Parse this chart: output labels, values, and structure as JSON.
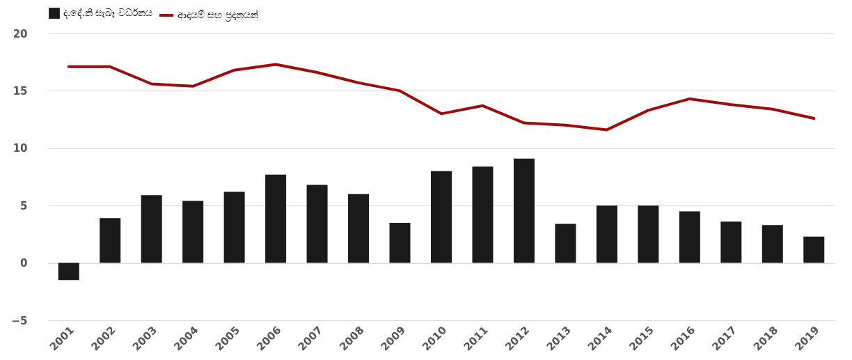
{
  "chart_data": {
    "type": "bar",
    "categories": [
      "2001",
      "2002",
      "2003",
      "2004",
      "2005",
      "2006",
      "2007",
      "2008",
      "2009",
      "2010",
      "2011",
      "2012",
      "2013",
      "2014",
      "2015",
      "2016",
      "2017",
      "2018",
      "2019"
    ],
    "series": [
      {
        "name": "ද.දේ.නි සැබෑ වර්ධනය",
        "color": "#1a1a1a",
        "values": [
          -1.5,
          3.9,
          5.9,
          5.4,
          6.2,
          7.7,
          6.8,
          6.0,
          3.5,
          8.0,
          8.4,
          9.1,
          3.4,
          5.0,
          5.0,
          4.5,
          3.6,
          3.3,
          2.3
        ]
      },
      {
        "name": "ආදායම් සහ ප්‍රදානයන්",
        "type": "line",
        "color": "#9b0d0d",
        "values": [
          17.1,
          17.1,
          15.6,
          15.4,
          16.8,
          17.3,
          16.6,
          15.7,
          15.0,
          13.0,
          13.7,
          12.2,
          12.0,
          11.6,
          13.3,
          14.3,
          13.8,
          13.4,
          12.6
        ]
      }
    ],
    "ylim": [
      -5,
      20
    ],
    "yticks": [
      -5,
      0,
      5,
      10,
      15,
      20
    ],
    "grid": "y",
    "legend": "top"
  }
}
